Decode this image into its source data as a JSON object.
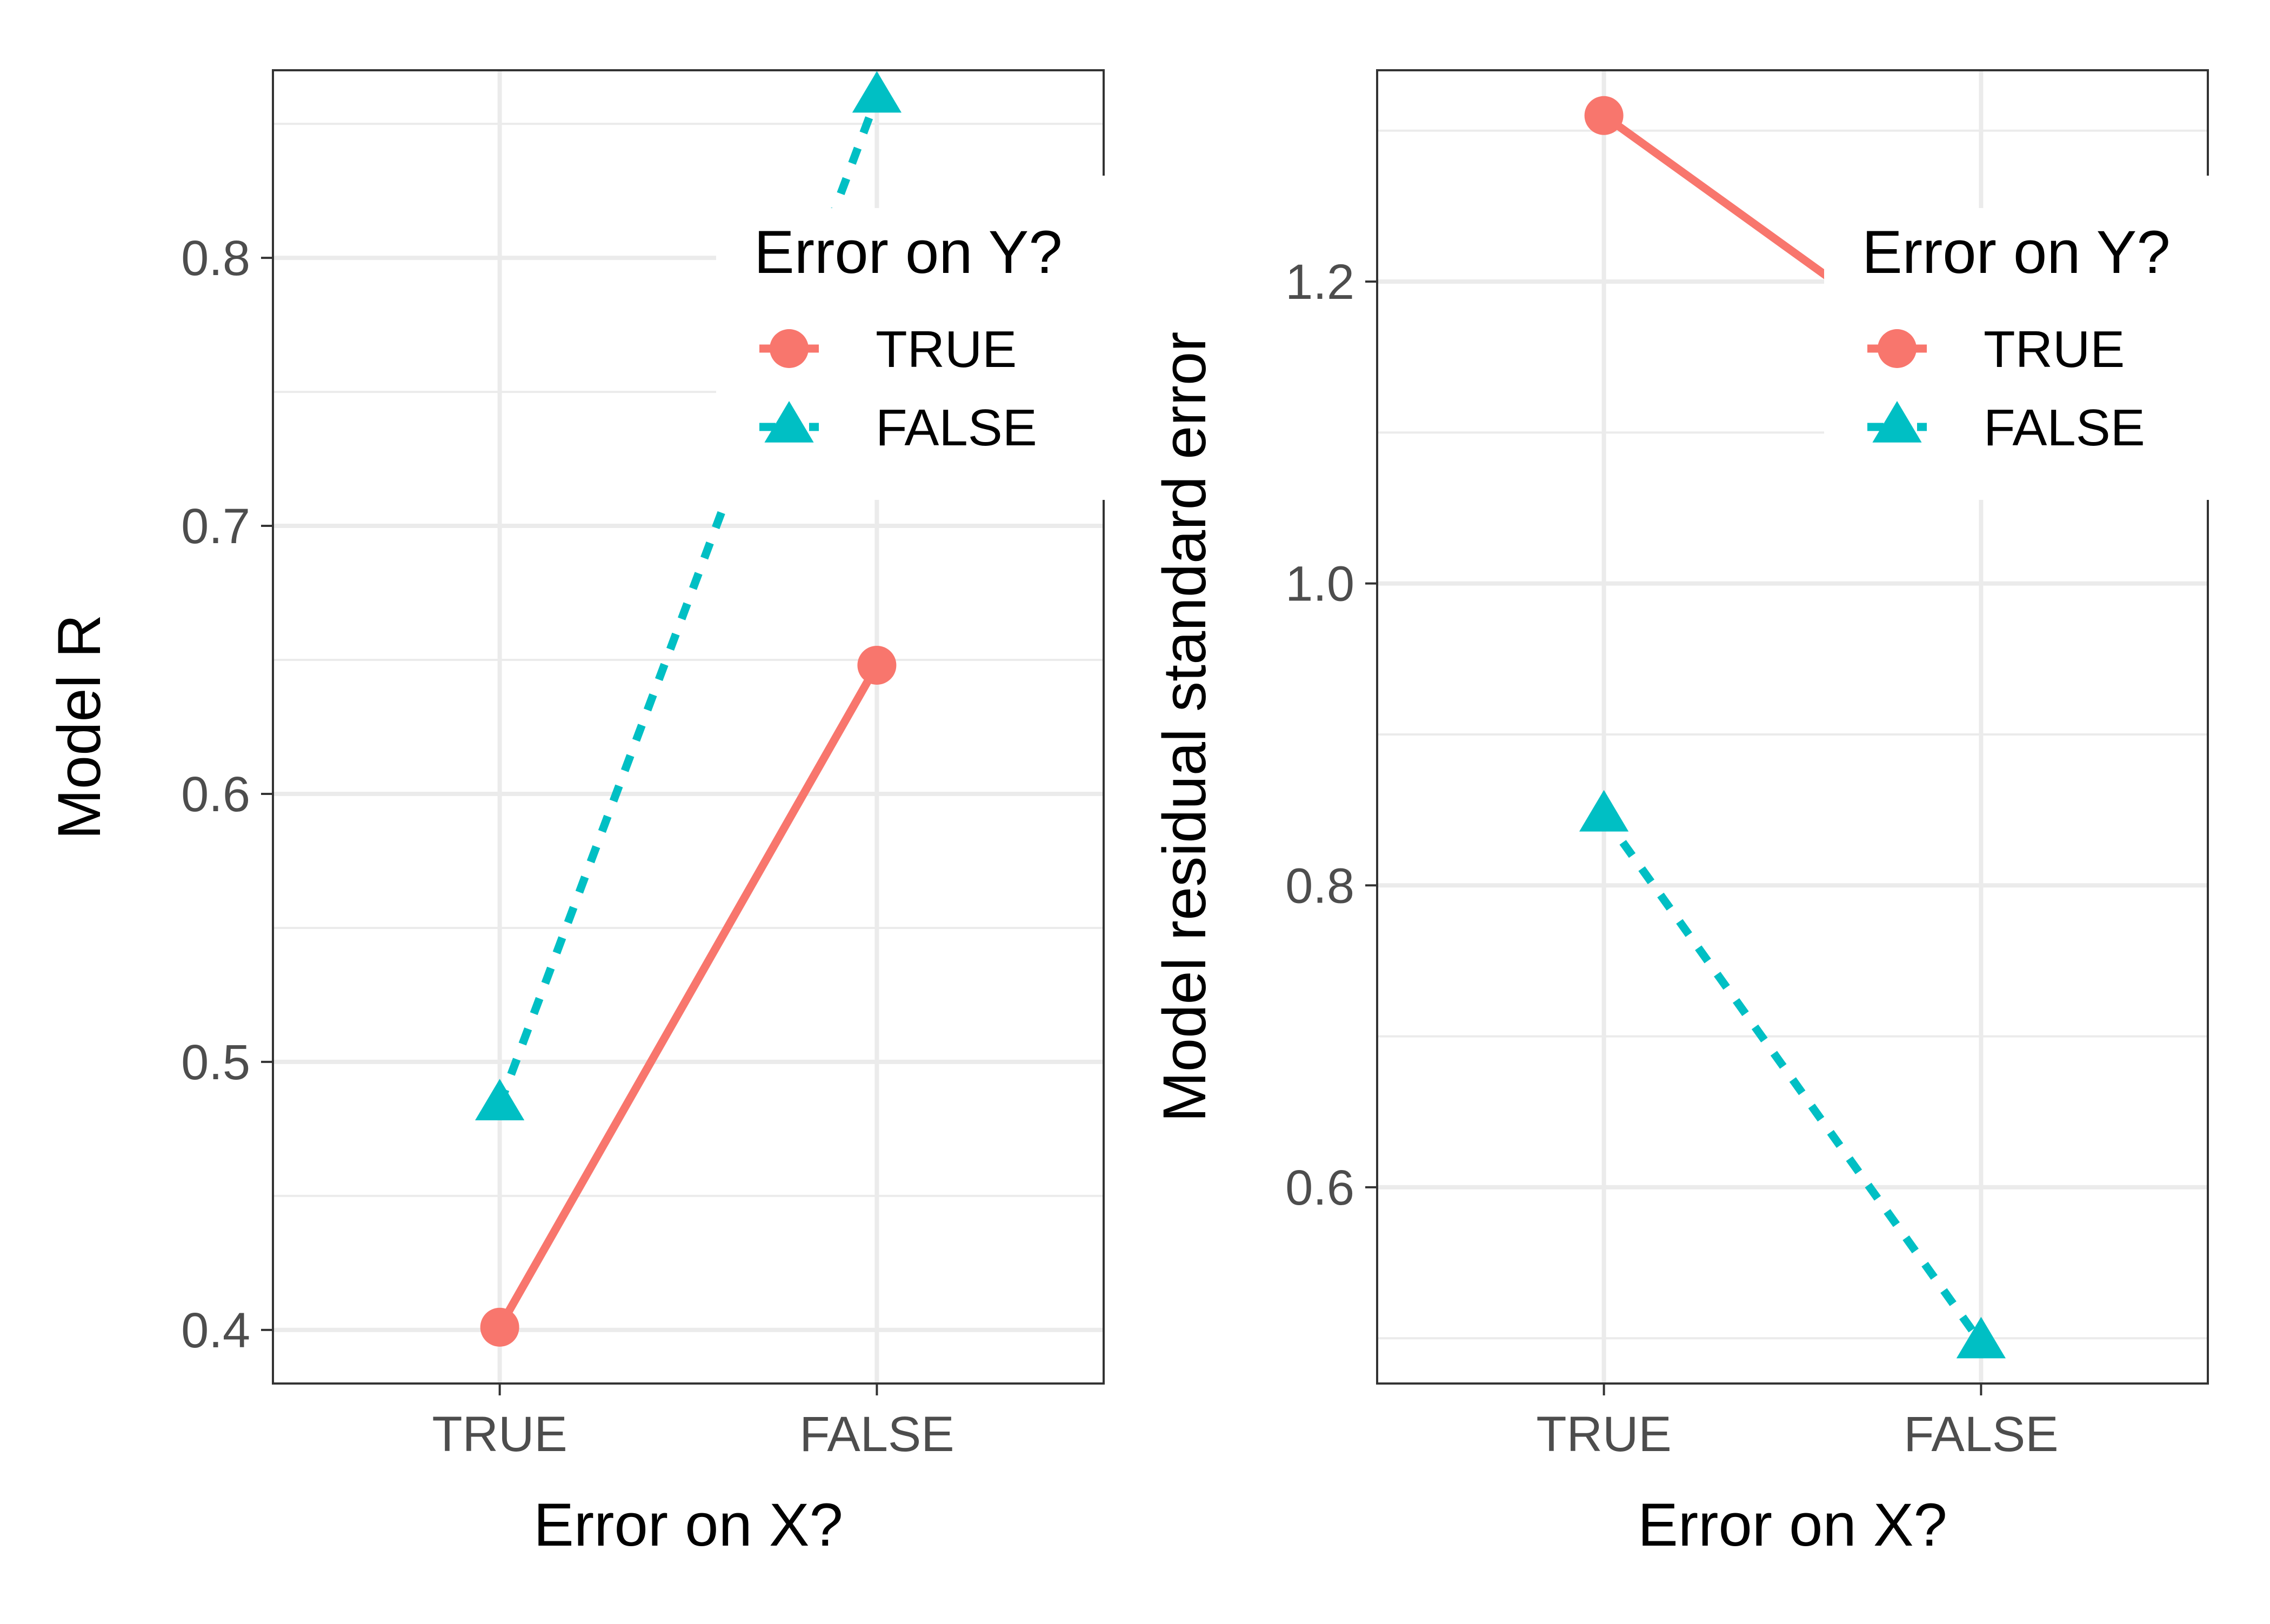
{
  "chart_data": [
    {
      "type": "line",
      "xlabel": "Error on X?",
      "ylabel": "Model R",
      "categories": [
        "TRUE",
        "FALSE"
      ],
      "ylim": [
        0.38,
        0.87
      ],
      "yticks": [
        "0.4",
        "0.5",
        "0.6",
        "0.7",
        "0.8"
      ],
      "grid": true,
      "legend": {
        "title": "Error on Y?",
        "placement": "top-right, inside",
        "entries": [
          "TRUE",
          "FALSE"
        ]
      },
      "series": [
        {
          "name": "TRUE",
          "values": [
            0.401,
            0.648
          ],
          "color": "#F8766D",
          "marker": "circle",
          "line": "solid"
        },
        {
          "name": "FALSE",
          "values": [
            0.484,
            0.86
          ],
          "color": "#00BFC4",
          "marker": "triangle",
          "line": "dashed"
        }
      ]
    },
    {
      "type": "line",
      "xlabel": "Error on X?",
      "ylabel": "Model residual standard error",
      "categories": [
        "TRUE",
        "FALSE"
      ],
      "ylim": [
        0.47,
        1.34
      ],
      "yticks": [
        "0.6",
        "0.8",
        "1.0",
        "1.2"
      ],
      "grid": true,
      "legend": {
        "title": "Error on Y?",
        "placement": "top-right, inside",
        "entries": [
          "TRUE",
          "FALSE"
        ]
      },
      "series": [
        {
          "name": "TRUE",
          "values": [
            1.31,
            1.13
          ],
          "color": "#F8766D",
          "marker": "circle",
          "line": "solid"
        },
        {
          "name": "FALSE",
          "values": [
            0.846,
            0.497
          ],
          "color": "#00BFC4",
          "marker": "triangle",
          "line": "dashed"
        }
      ]
    }
  ]
}
